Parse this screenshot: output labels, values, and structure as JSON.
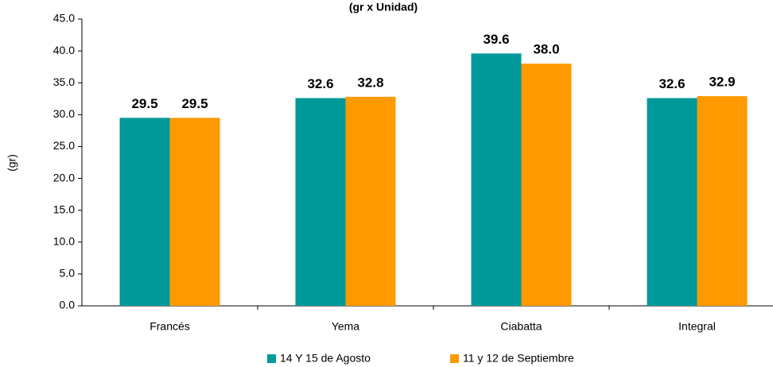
{
  "chart_data": {
    "type": "bar",
    "title": "(gr x Unidad)",
    "y_label": "(gr)",
    "categories": [
      "Francés",
      "Yema",
      "Ciabatta",
      "Integral"
    ],
    "series": [
      {
        "name": "14 Y 15 de Agosto",
        "color": "#009999",
        "values": [
          29.5,
          32.6,
          39.6,
          32.6
        ],
        "value_labels": [
          "29.5",
          "32.6",
          "39.6",
          "32.6"
        ]
      },
      {
        "name": "11 y 12 de Septiembre",
        "color": "#ff9900",
        "values": [
          29.5,
          32.8,
          38.0,
          32.9
        ],
        "value_labels": [
          "29.5",
          "32.8",
          "38.0",
          "32.9"
        ]
      }
    ],
    "ylim": [
      0,
      45
    ],
    "yticks": [
      {
        "value": 0,
        "label": "0.0"
      },
      {
        "value": 5,
        "label": "5.0"
      },
      {
        "value": 10,
        "label": "10.0"
      },
      {
        "value": 15,
        "label": "15.0"
      },
      {
        "value": 20,
        "label": "20.0"
      },
      {
        "value": 25,
        "label": "25.0"
      },
      {
        "value": 30,
        "label": "30.0"
      },
      {
        "value": 35,
        "label": "35.0"
      },
      {
        "value": 40,
        "label": "40.0"
      },
      {
        "value": 45,
        "label": "45.0"
      }
    ],
    "grid": false,
    "legend": "bottom"
  }
}
